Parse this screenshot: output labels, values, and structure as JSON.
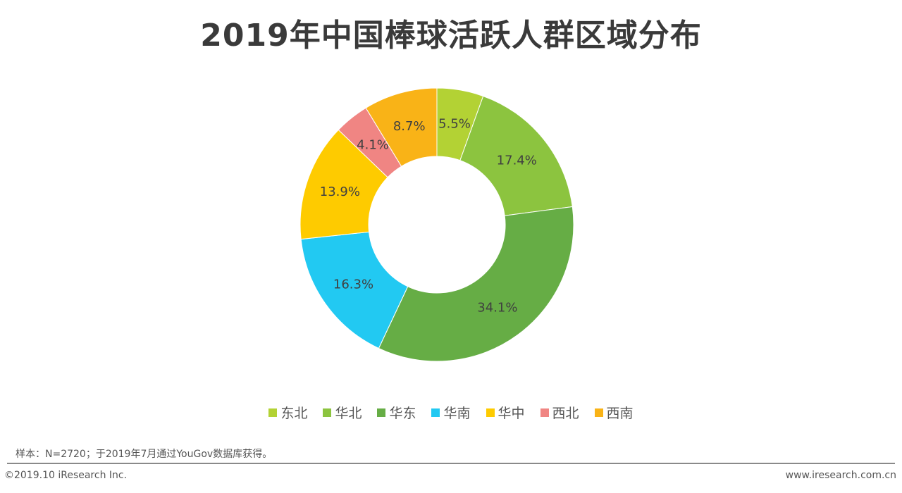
{
  "chart_data": {
    "type": "pie",
    "donut": true,
    "title": "2019年中国棒球活跃人群区域分布",
    "categories": [
      "东北",
      "华北",
      "华东",
      "华南",
      "华中",
      "西北",
      "西南"
    ],
    "values": [
      5.5,
      17.4,
      34.1,
      16.3,
      13.9,
      4.1,
      8.7
    ],
    "labels": [
      "5.5%",
      "17.4%",
      "34.1%",
      "16.3%",
      "13.9%",
      "4.1%",
      "8.7%"
    ],
    "colors": [
      "#b3d234",
      "#8cc43f",
      "#66ad45",
      "#22c9f2",
      "#fecb00",
      "#f08583",
      "#f9b317"
    ],
    "legend_position": "bottom"
  },
  "footer": {
    "note": "样本：N=2720；于2019年7月通过YouGov数据库获得。",
    "copyright": "©2019.10 iResearch Inc.",
    "website": "www.iresearch.com.cn"
  }
}
